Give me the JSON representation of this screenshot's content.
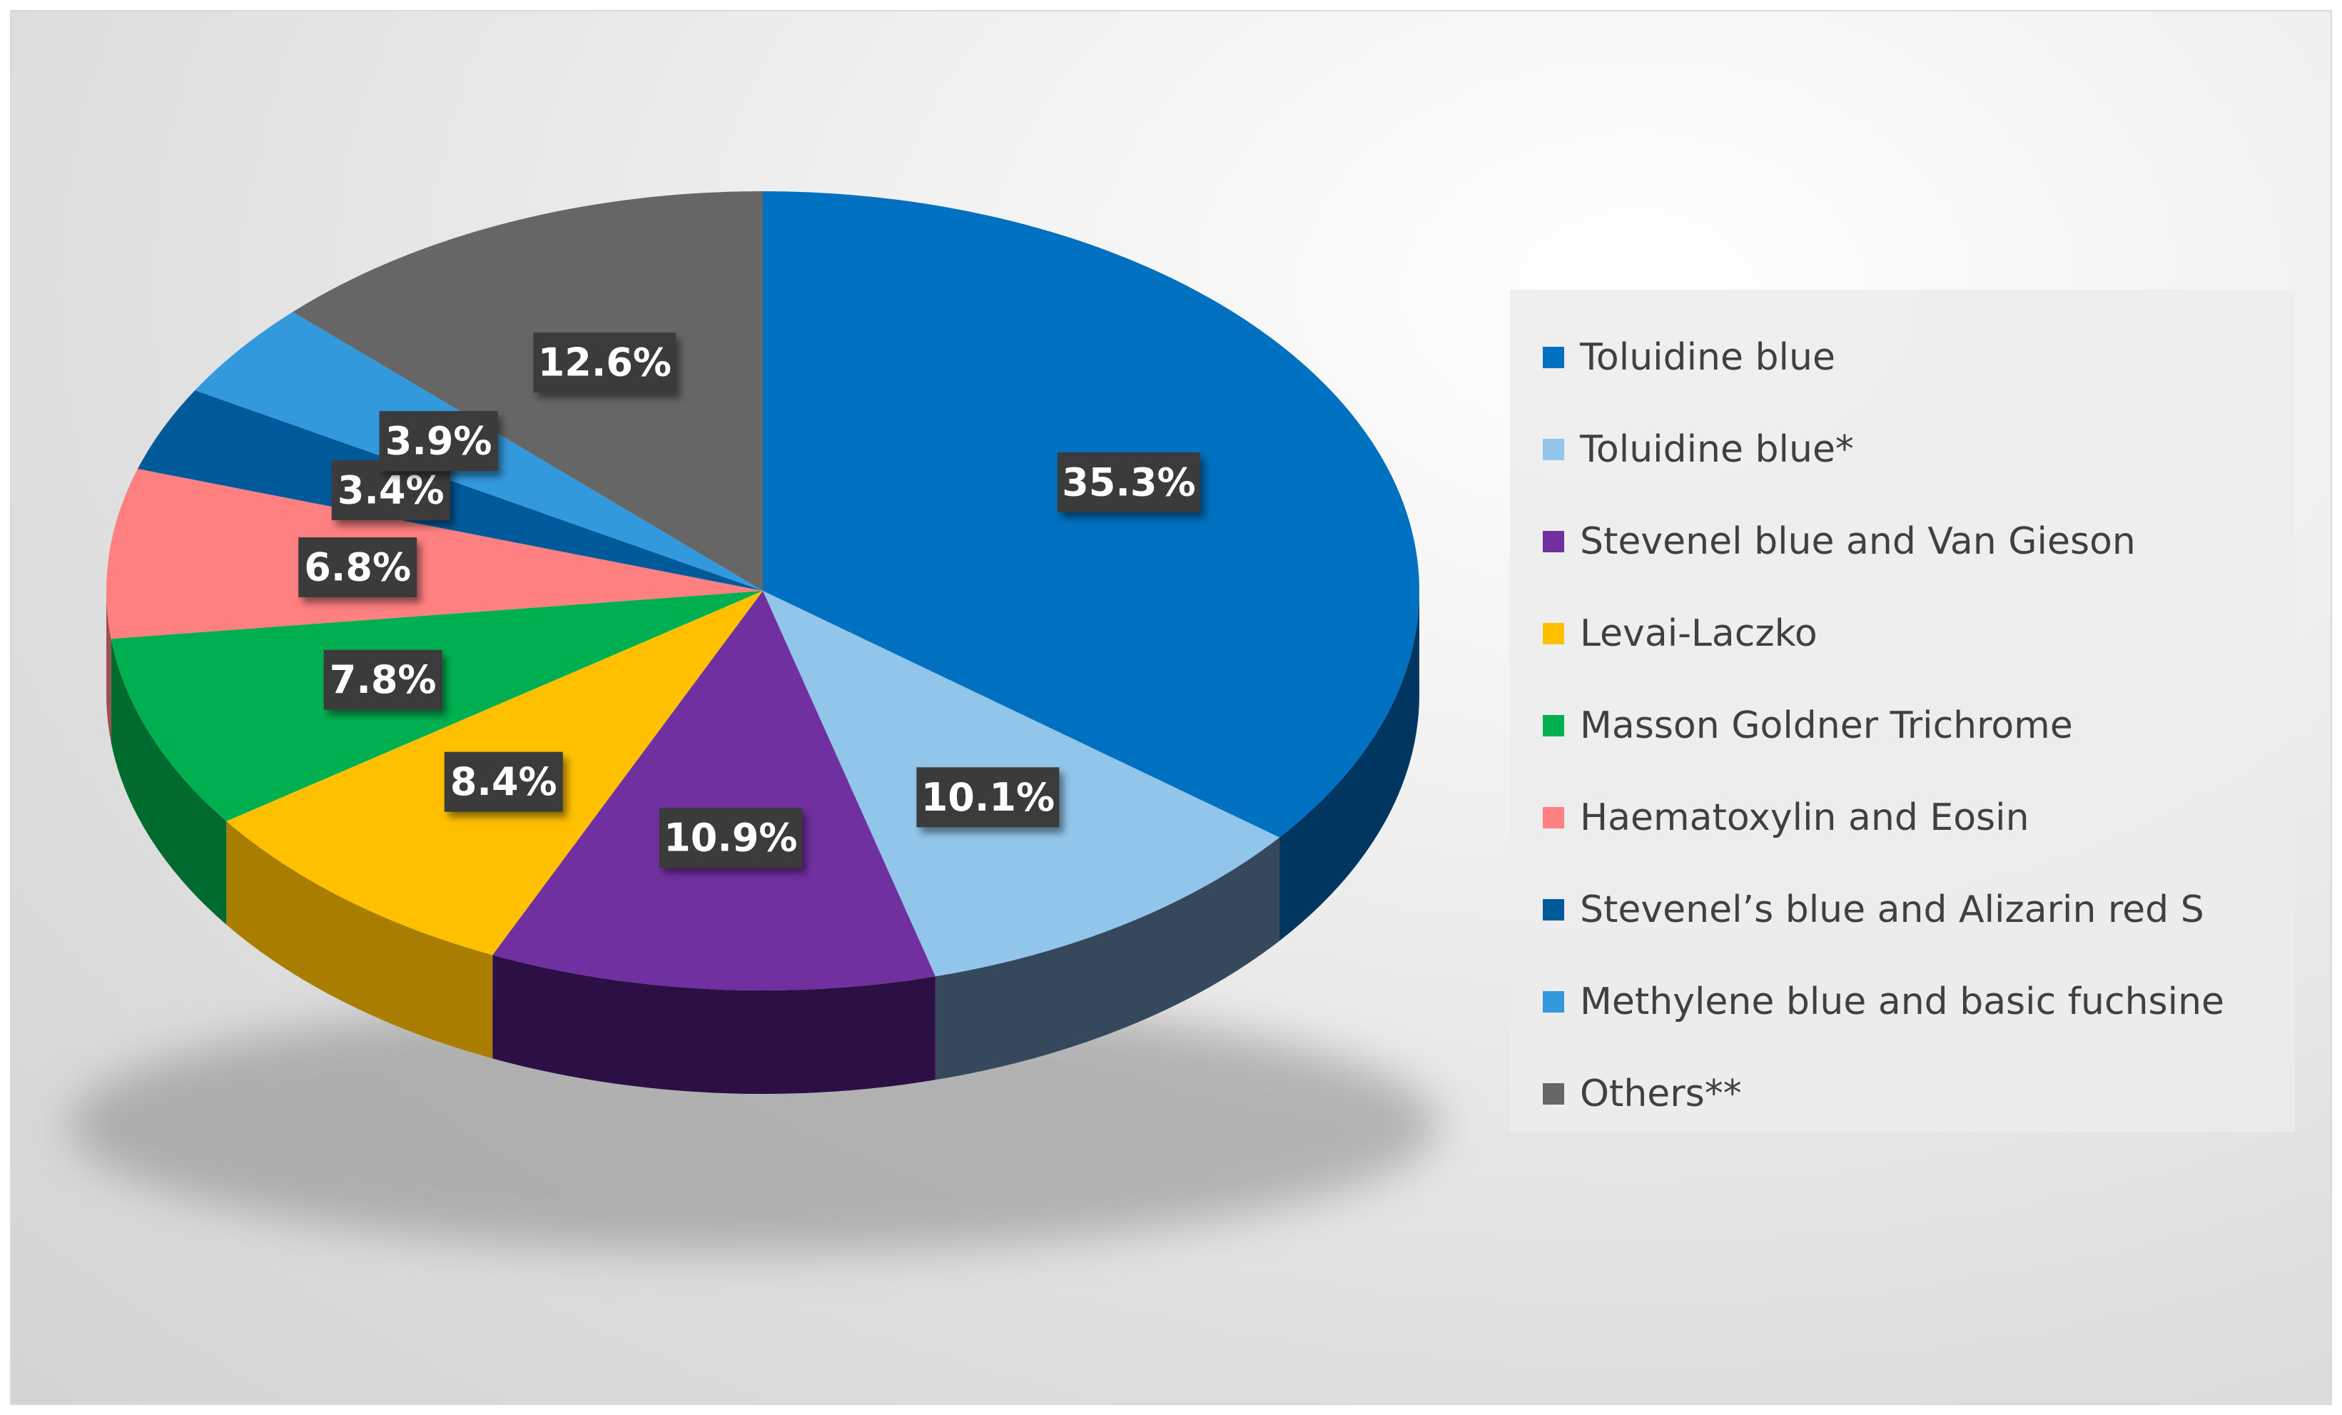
{
  "chart_data": {
    "type": "pie",
    "title": "",
    "is_3d": true,
    "start_angle_deg": 0,
    "direction": "clockwise",
    "legend_position": "right",
    "slices": [
      {
        "name": "Toluidine blue",
        "value": 35.3,
        "label": "35.3%",
        "color": "#0070c0",
        "side_color": "#00365f"
      },
      {
        "name": "Toluidine blue*",
        "value": 10.1,
        "label": "10.1%",
        "color": "#92c5ea",
        "side_color": "#36495c"
      },
      {
        "name": "Stevenel blue and Van Gieson",
        "value": 10.9,
        "label": "10.9%",
        "color": "#7030a0",
        "side_color": "#2c0f45"
      },
      {
        "name": "Levai-Laczko",
        "value": 8.4,
        "label": "8.4%",
        "color": "#ffc000",
        "side_color": "#a97e00"
      },
      {
        "name": "Masson Goldner Trichrome",
        "value": 7.8,
        "label": "7.8%",
        "color": "#00b050",
        "side_color": "#006a2f"
      },
      {
        "name": "Haematoxylin and Eosin",
        "value": 6.8,
        "label": "6.8%",
        "color": "#ff8080",
        "side_color": "#a04f4f"
      },
      {
        "name": "Stevenel’s blue and Alizarin red S",
        "value": 3.4,
        "label": "3.4%",
        "color": "#005a9a",
        "side_color": "#002a4a"
      },
      {
        "name": "Methylene blue and basic fuchsine",
        "value": 3.9,
        "label": "3.9%",
        "color": "#3399dd",
        "side_color": "#1d5a82"
      },
      {
        "name": "Others**",
        "value": 12.6,
        "label": "12.6%",
        "color": "#666666",
        "side_color": "#2e2e2e"
      }
    ]
  }
}
